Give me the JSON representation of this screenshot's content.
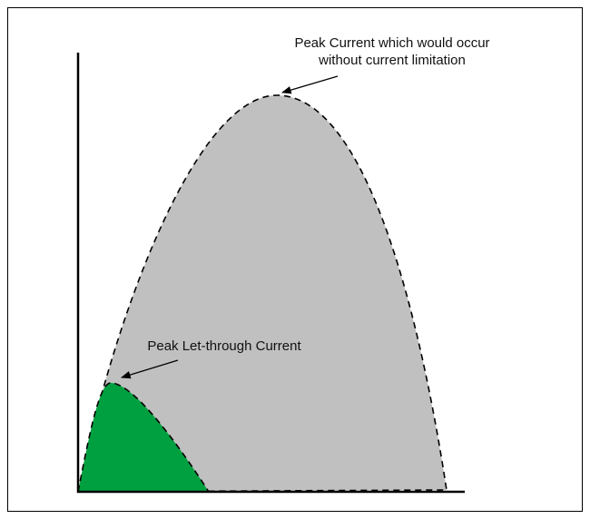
{
  "labels": {
    "peak_current": [
      "Peak Current which would occur",
      "without current limitation"
    ],
    "peak_let_through": "Peak Let-through Current"
  }
}
